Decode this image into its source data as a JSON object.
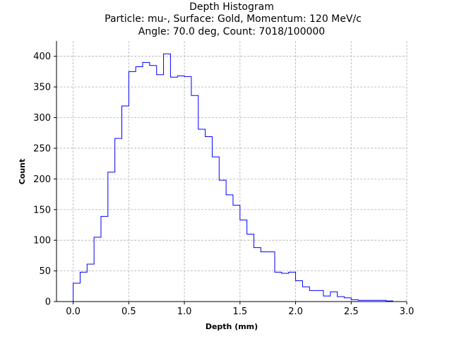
{
  "chart_data": {
    "type": "histogram-step",
    "title_lines": [
      "Depth Histogram",
      "Particle: mu-, Surface: Gold, Momentum: 120 MeV/c",
      "Angle: 70.0 deg, Count: 7018/100000"
    ],
    "xlabel": "Depth (mm)",
    "ylabel": "Count",
    "xlim": [
      -0.15,
      3.0
    ],
    "ylim": [
      0,
      425
    ],
    "xticks": [
      0.0,
      0.5,
      1.0,
      1.5,
      2.0,
      2.5,
      3.0
    ],
    "xtick_labels": [
      "0.0",
      "0.5",
      "1.0",
      "1.5",
      "2.0",
      "2.5",
      "3.0"
    ],
    "yticks": [
      0,
      50,
      100,
      150,
      200,
      250,
      300,
      350,
      400
    ],
    "ytick_labels": [
      "0",
      "50",
      "100",
      "150",
      "200",
      "250",
      "300",
      "350",
      "400"
    ],
    "grid": true,
    "line_color": "#0000ff",
    "bin_edges": [
      0,
      0.0625,
      0.125,
      0.1875,
      0.25,
      0.3125,
      0.375,
      0.4375,
      0.5,
      0.5625,
      0.625,
      0.6875,
      0.75,
      0.8125,
      0.875,
      0.9375,
      1.0,
      1.0625,
      1.125,
      1.1875,
      1.25,
      1.3125,
      1.375,
      1.4375,
      1.5,
      1.5625,
      1.625,
      1.6875,
      1.75,
      1.8125,
      1.875,
      1.9375,
      2.0,
      2.0625,
      2.125,
      2.1875,
      2.25,
      2.3125,
      2.375,
      2.4375,
      2.5,
      2.5625,
      2.625,
      2.6875,
      2.75,
      2.8125,
      2.875
    ],
    "counts": [
      30,
      48,
      61,
      105,
      139,
      211,
      266,
      319,
      375,
      383,
      390,
      385,
      370,
      404,
      366,
      368,
      367,
      336,
      281,
      269,
      236,
      198,
      174,
      157,
      133,
      110,
      88,
      81,
      81,
      48,
      46,
      48,
      34,
      24,
      18,
      18,
      9,
      16,
      8,
      6,
      3,
      2,
      2,
      2,
      2,
      1
    ]
  }
}
